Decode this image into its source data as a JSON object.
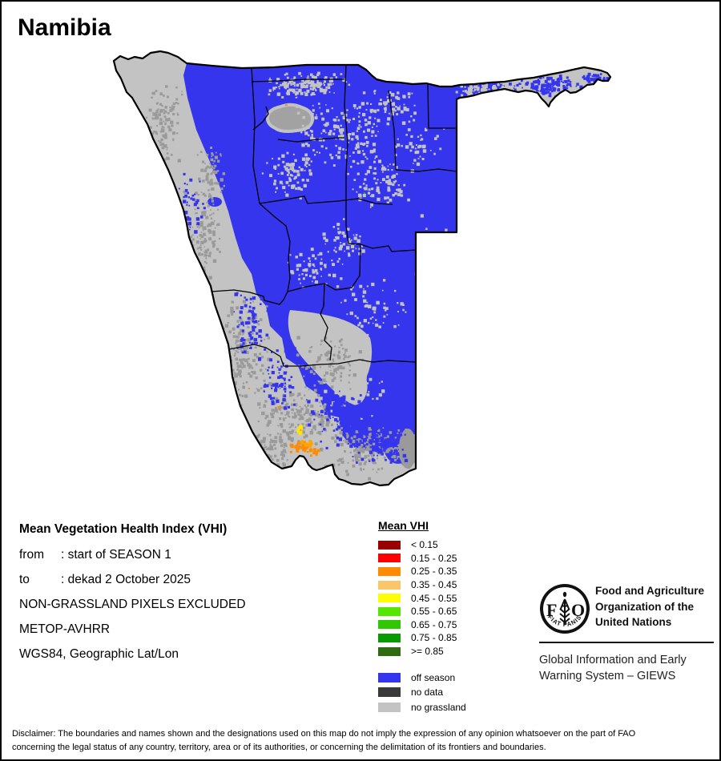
{
  "page": {
    "title": "Namibia"
  },
  "info": {
    "heading": "Mean Vegetation Health Index (VHI)",
    "rows": [
      {
        "label": "from",
        "value": ": start of SEASON 1"
      },
      {
        "label": "to",
        "value": ": dekad 2 October 2025"
      }
    ],
    "lines": [
      "NON-GRASSLAND PIXELS EXCLUDED",
      "METOP-AVHRR",
      "WGS84, Geographic Lat/Lon"
    ]
  },
  "legend": {
    "title": "Mean VHI",
    "classes": [
      {
        "label": "< 0.15",
        "color": "#9B0000"
      },
      {
        "label": "0.15 - 0.25",
        "color": "#FE0000"
      },
      {
        "label": "0.25 - 0.35",
        "color": "#FF8C00"
      },
      {
        "label": "0.35 - 0.45",
        "color": "#FBC56A"
      },
      {
        "label": "0.45 - 0.55",
        "color": "#FEFE00"
      },
      {
        "label": "0.55 - 0.65",
        "color": "#56E600"
      },
      {
        "label": "0.65 - 0.75",
        "color": "#2FC800"
      },
      {
        "label": "0.75 - 0.85",
        "color": "#089B00"
      },
      {
        "label": ">= 0.85",
        "color": "#2F6B10"
      }
    ],
    "extra": [
      {
        "label": "off season",
        "color": "#3535EE"
      },
      {
        "label": "no data",
        "color": "#3A3A3A"
      },
      {
        "label": "no grassland",
        "color": "#C3C3C3"
      }
    ]
  },
  "map_colors": {
    "off_season_blue": "#3535EE",
    "no_grassland_gray": "#C3C3C3",
    "speckle_gray": "#9A9A9A",
    "pan_gray": "#A2A2A2",
    "boundary_black": "#000000"
  },
  "fao": {
    "logo_f": "F",
    "logo_o": "O",
    "logo_motto": "FIAT   PANIS",
    "org_lines": [
      "Food and Agriculture",
      "Organization of the",
      "United Nations"
    ],
    "giews_lines": [
      "Global Information and Early",
      "Warning System – GIEWS"
    ]
  },
  "disclaimer": {
    "line1": "Disclaimer: The boundaries and names shown and the designations used on this map do not imply the expression of any opinion whatsoever on the part of FAO",
    "line2": "concerning the legal status of any country, territory, area or of its authorities, or concerning the delimitation of its frontiers and boundaries."
  }
}
